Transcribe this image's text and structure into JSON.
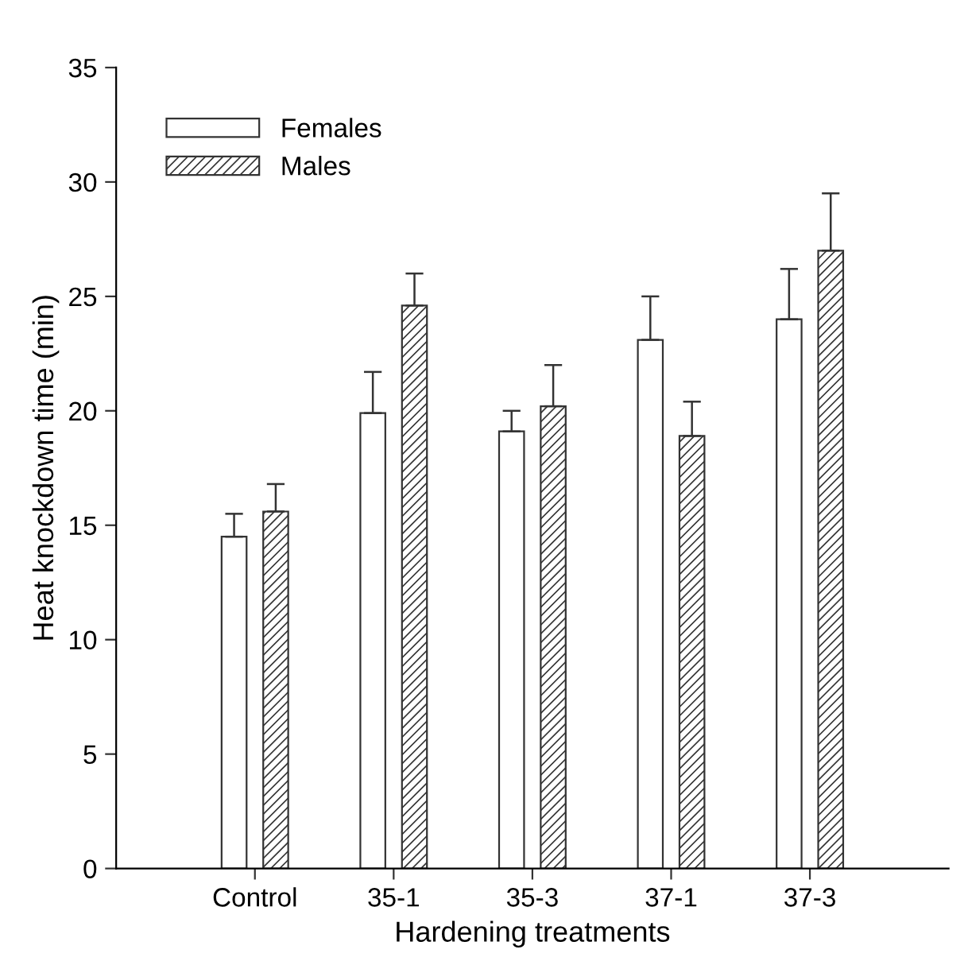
{
  "chart_data": {
    "type": "bar",
    "xlabel": "Hardening treatments",
    "ylabel": "Heat knockdown time (min)",
    "categories": [
      "Control",
      "35-1",
      "35-3",
      "37-1",
      "37-3"
    ],
    "series": [
      {
        "name": "Females",
        "color": "#ffffff",
        "values": [
          14.5,
          19.9,
          19.1,
          23.1,
          24.0
        ],
        "errors": [
          [
            14.5,
            15.5
          ],
          [
            19.9,
            21.7
          ],
          [
            19.1,
            20.0
          ],
          [
            23.1,
            25.0
          ],
          [
            24.0,
            26.2
          ]
        ]
      },
      {
        "name": "Males",
        "color": "#333333",
        "values": [
          15.6,
          24.6,
          20.2,
          18.9,
          27.0
        ],
        "errors": [
          [
            15.6,
            16.8
          ],
          [
            24.6,
            26.0
          ],
          [
            20.2,
            22.0
          ],
          [
            18.9,
            20.4
          ],
          [
            27.0,
            29.5
          ]
        ]
      }
    ],
    "ylim": [
      0,
      35
    ],
    "yticks": [
      0,
      5,
      10,
      15,
      20,
      25,
      30,
      35
    ],
    "grid": false,
    "legend": "top left"
  }
}
